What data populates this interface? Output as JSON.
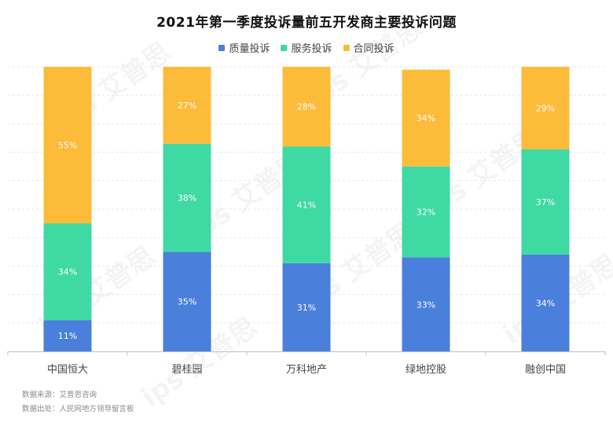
{
  "chart_data": {
    "type": "bar",
    "stacked": true,
    "title": "2021年第一季度投诉量前五开发商主要投诉问题",
    "categories": [
      "中国恒大",
      "碧桂园",
      "万科地产",
      "绿地控股",
      "融创中国"
    ],
    "series": [
      {
        "name": "质量投诉",
        "color": "#4A7FDB",
        "values": [
          11,
          35,
          31,
          33,
          34
        ],
        "labels": [
          "11%",
          "35%",
          "31%",
          "33%",
          "34%"
        ]
      },
      {
        "name": "服务投诉",
        "color": "#3FD9A4",
        "values": [
          34,
          38,
          41,
          32,
          37
        ],
        "labels": [
          "34%",
          "38%",
          "41%",
          "32%",
          "37%"
        ]
      },
      {
        "name": "合同投诉",
        "color": "#FDBB3A",
        "values": [
          55,
          27,
          28,
          34,
          29
        ],
        "labels": [
          "55%",
          "27%",
          "28%",
          "34%",
          "29%"
        ]
      }
    ],
    "ylim": [
      0,
      100
    ],
    "grid": true,
    "legend_position": "top-center"
  },
  "footer": {
    "source": "数据来源：艾普思咨询",
    "origin": "数据出处：人民网地方领导留言板"
  },
  "watermark": "ips 艾普思"
}
